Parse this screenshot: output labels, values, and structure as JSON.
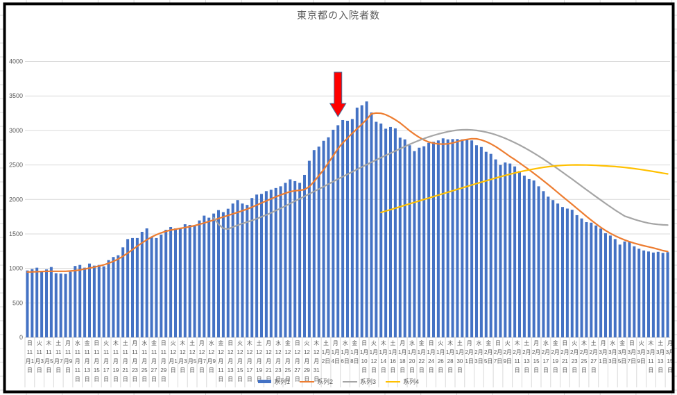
{
  "chart": {
    "title": "東京都の入院者数",
    "colors": {
      "bar": "#4472C4",
      "line2": "#ED7D31",
      "line3": "#A5A5A5",
      "line4": "#FFC000",
      "grid": "#D9D9D9",
      "axis_line": "#C8C8C8",
      "text": "#595959",
      "border": "#000000",
      "arrow_fill": "#FF0000",
      "arrow_outline": "#41719C"
    }
  },
  "legend": {
    "items": [
      {
        "label": "系列1",
        "type": "bar",
        "color": "#4472C4"
      },
      {
        "label": "系列2",
        "type": "line",
        "color": "#ED7D31"
      },
      {
        "label": "系列3",
        "type": "line",
        "color": "#A5A5A5"
      },
      {
        "label": "系列4",
        "type": "line",
        "color": "#FFC000"
      }
    ]
  },
  "y_axis": {
    "tick_labels": [
      "0",
      "500",
      "1000",
      "1500",
      "2000",
      "2500",
      "3000",
      "3500",
      "4000"
    ]
  },
  "chart_data": {
    "type": "bar",
    "subtype": "combo_bar_line",
    "title": "東京都の入院者数",
    "ylim": [
      0,
      4000
    ],
    "y_tick_step": 500,
    "grid": "horizontal",
    "legend_position": "bottom",
    "x_period": "daily 2020-11-01 to 2021-03-15 (135 days), axis labels every 2 days",
    "annotation": {
      "shape": "block-arrow-down",
      "fill": "#FF0000",
      "outline": "#41719C",
      "points_at_bar_index": 65
    },
    "bar_series": {
      "name": "系列1",
      "color": "#4472C4",
      "values": [
        970,
        990,
        1010,
        960,
        985,
        1020,
        930,
        925,
        920,
        950,
        1035,
        1050,
        1010,
        1070,
        1040,
        1050,
        1030,
        1120,
        1165,
        1190,
        1305,
        1425,
        1440,
        1440,
        1530,
        1580,
        1460,
        1440,
        1490,
        1560,
        1600,
        1580,
        1590,
        1640,
        1630,
        1620,
        1695,
        1765,
        1735,
        1795,
        1845,
        1815,
        1865,
        1940,
        1990,
        1940,
        1920,
        2020,
        2070,
        2080,
        2120,
        2140,
        2165,
        2190,
        2240,
        2290,
        2265,
        2240,
        2355,
        2560,
        2715,
        2765,
        2850,
        2900,
        3010,
        3075,
        3150,
        3140,
        3165,
        3330,
        3365,
        3420,
        3260,
        3125,
        3100,
        3025,
        3050,
        3030,
        2895,
        2870,
        2785,
        2700,
        2750,
        2770,
        2820,
        2835,
        2855,
        2885,
        2870,
        2875,
        2875,
        2870,
        2870,
        2855,
        2785,
        2760,
        2690,
        2660,
        2580,
        2500,
        2535,
        2520,
        2478,
        2410,
        2345,
        2295,
        2275,
        2190,
        2120,
        2040,
        1990,
        1940,
        1890,
        1867,
        1850,
        1772,
        1724,
        1670,
        1663,
        1622,
        1578,
        1510,
        1476,
        1425,
        1345,
        1390,
        1385,
        1320,
        1285,
        1260,
        1245,
        1230,
        1240,
        1225,
        1235
      ]
    },
    "line_series": [
      {
        "name": "系列2",
        "color": "#ED7D31",
        "start_index": 0,
        "values": [
          948,
          950,
          952,
          955,
          957,
          958,
          958,
          958,
          958,
          962,
          968,
          978,
          990,
          1004,
          1018,
          1034,
          1052,
          1075,
          1102,
          1135,
          1175,
          1222,
          1272,
          1322,
          1370,
          1415,
          1455,
          1488,
          1515,
          1538,
          1555,
          1568,
          1580,
          1592,
          1605,
          1620,
          1638,
          1658,
          1680,
          1702,
          1724,
          1746,
          1768,
          1790,
          1812,
          1835,
          1860,
          1888,
          1918,
          1948,
          1978,
          2008,
          2038,
          2065,
          2090,
          2112,
          2125,
          2132,
          2142,
          2185,
          2260,
          2345,
          2430,
          2530,
          2632,
          2735,
          2820,
          2888,
          2960,
          3025,
          3090,
          3160,
          3240,
          3252,
          3248,
          3228,
          3195,
          3155,
          3108,
          3052,
          2995,
          2945,
          2900,
          2862,
          2832,
          2815,
          2805,
          2802,
          2806,
          2818,
          2838,
          2858,
          2870,
          2880,
          2878,
          2862,
          2838,
          2805,
          2765,
          2720,
          2672,
          2622,
          2578,
          2530,
          2480,
          2430,
          2378,
          2325,
          2270,
          2215,
          2158,
          2100,
          2042,
          1985,
          1928,
          1870,
          1812,
          1755,
          1700,
          1646,
          1595,
          1549,
          1508,
          1472,
          1440,
          1412,
          1388,
          1366,
          1346,
          1328,
          1312,
          1296,
          1278,
          1258,
          1245
        ]
      },
      {
        "name": "系列3",
        "color": "#A5A5A5",
        "start_index": 39,
        "values": [
          1735,
          1640,
          1580,
          1570,
          1600,
          1625,
          1650,
          1672,
          1695,
          1720,
          1748,
          1775,
          1805,
          1838,
          1870,
          1905,
          1940,
          1975,
          2010,
          2045,
          2080,
          2115,
          2150,
          2185,
          2222,
          2258,
          2295,
          2330,
          2365,
          2400,
          2435,
          2470,
          2505,
          2538,
          2572,
          2605,
          2638,
          2670,
          2702,
          2734,
          2766,
          2798,
          2828,
          2856,
          2882,
          2906,
          2928,
          2948,
          2966,
          2982,
          2995,
          3004,
          3009,
          3010,
          3007,
          3000,
          2990,
          2976,
          2958,
          2937,
          2913,
          2886,
          2856,
          2823,
          2788,
          2751,
          2712,
          2671,
          2628,
          2584,
          2538,
          2491,
          2443,
          2394,
          2344,
          2294,
          2243,
          2192,
          2141,
          2090,
          2040,
          1990,
          1941,
          1893,
          1846,
          1801,
          1758,
          1735,
          1712,
          1691,
          1672,
          1656,
          1645,
          1637,
          1631,
          1628
        ]
      },
      {
        "name": "系列4",
        "color": "#FFC000",
        "start_index": 74,
        "values": [
          1810,
          1831,
          1852,
          1873,
          1894,
          1915,
          1936,
          1957,
          1978,
          1999,
          2020,
          2041,
          2062,
          2083,
          2104,
          2125,
          2146,
          2167,
          2188,
          2209,
          2230,
          2250,
          2270,
          2290,
          2310,
          2329,
          2348,
          2366,
          2383,
          2399,
          2414,
          2428,
          2441,
          2453,
          2464,
          2474,
          2482,
          2489,
          2494,
          2498,
          2500,
          2501,
          2500,
          2499,
          2497,
          2494,
          2490,
          2486,
          2481,
          2476,
          2470,
          2463,
          2455,
          2446,
          2437,
          2427,
          2416,
          2405,
          2393,
          2381,
          2370
        ]
      }
    ],
    "x_tick_labels": [
      {
        "stack": "日|11|月1|日"
      },
      {
        "stack": "火|11|月3|日"
      },
      {
        "stack": "木|11|月5|日"
      },
      {
        "stack": "土|11|月7|日"
      },
      {
        "stack": "月|11|月9|日"
      },
      {
        "stack": "水|11|月|11|日"
      },
      {
        "stack": "金|11|月|13|日"
      },
      {
        "stack": "日|11|月|15|日"
      },
      {
        "stack": "火|11|月|17|日"
      },
      {
        "stack": "木|11|月|19|日"
      },
      {
        "stack": "土|11|月|21|日"
      },
      {
        "stack": "月|11|月|23|日"
      },
      {
        "stack": "水|11|月|25|日"
      },
      {
        "stack": "金|11|月|27|日"
      },
      {
        "stack": "日|11|月|29|日"
      },
      {
        "stack": "火|12|月1|日"
      },
      {
        "stack": "木|12|月3|日"
      },
      {
        "stack": "土|12|月5|日"
      },
      {
        "stack": "月|12|月7|日"
      },
      {
        "stack": "水|12|月9|日"
      },
      {
        "stack": "金|12|月|11|日"
      },
      {
        "stack": "日|12|月|13|日"
      },
      {
        "stack": "火|12|月|15|日"
      },
      {
        "stack": "木|12|月|17|日"
      },
      {
        "stack": "土|12|月|19|日"
      },
      {
        "stack": "月|12|月|21|日"
      },
      {
        "stack": "水|12|月|23|日"
      },
      {
        "stack": "金|12|月|25|日"
      },
      {
        "stack": "日|12|月|27|日"
      },
      {
        "stack": "火|12|月|29|日"
      },
      {
        "stack": "木|12|月|31|日"
      },
      {
        "stack": "土|1月|2日"
      },
      {
        "stack": "月|1月|4日"
      },
      {
        "stack": "水|1月|6日"
      },
      {
        "stack": "金|1月|8日"
      },
      {
        "stack": "日|1月|10|日"
      },
      {
        "stack": "火|1月|12|日"
      },
      {
        "stack": "木|1月|14|日"
      },
      {
        "stack": "土|1月|16|日"
      },
      {
        "stack": "月|1月|18|日"
      },
      {
        "stack": "水|1月|20|日"
      },
      {
        "stack": "金|1月|22|日"
      },
      {
        "stack": "日|1月|24|日"
      },
      {
        "stack": "火|1月|26|日"
      },
      {
        "stack": "木|1月|28|日"
      },
      {
        "stack": "土|1月|30|日"
      },
      {
        "stack": "月|2月|1日"
      },
      {
        "stack": "水|2月|3日"
      },
      {
        "stack": "金|2月|5日"
      },
      {
        "stack": "日|2月|7日"
      },
      {
        "stack": "火|2月|9日"
      },
      {
        "stack": "木|2月|11|日"
      },
      {
        "stack": "土|2月|13|日"
      },
      {
        "stack": "月|2月|15|日"
      },
      {
        "stack": "水|2月|17|日"
      },
      {
        "stack": "金|2月|19|日"
      },
      {
        "stack": "日|2月|21|日"
      },
      {
        "stack": "火|2月|23|日"
      },
      {
        "stack": "木|2月|25|日"
      },
      {
        "stack": "土|2月|27|日"
      },
      {
        "stack": "月|3月|1日"
      },
      {
        "stack": "水|3月|3日"
      },
      {
        "stack": "金|3月|5日"
      },
      {
        "stack": "日|3月|7日"
      },
      {
        "stack": "火|3月|9日"
      },
      {
        "stack": "木|3月|11|日"
      },
      {
        "stack": "土|3月|13|日"
      },
      {
        "stack": "月|3月|15|日"
      }
    ]
  }
}
